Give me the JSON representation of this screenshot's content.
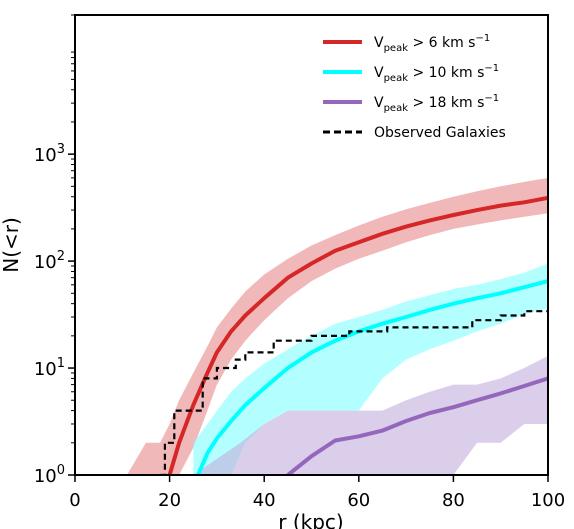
{
  "chart_data": {
    "type": "line",
    "xlabel": "r (kpc)",
    "ylabel": "N(<r)",
    "xlim": [
      0,
      100
    ],
    "ylim": [
      1,
      20000
    ],
    "yscale": "log",
    "grid": false,
    "legend_placement": "top-right",
    "x_ticks": [
      {
        "value": 0,
        "label": "0"
      },
      {
        "value": 20,
        "label": "20"
      },
      {
        "value": 40,
        "label": "40"
      },
      {
        "value": 60,
        "label": "60"
      },
      {
        "value": 80,
        "label": "80"
      },
      {
        "value": 100,
        "label": "100"
      }
    ],
    "y_ticks": [
      {
        "value": 1,
        "base": "10",
        "exp": "0"
      },
      {
        "value": 10,
        "base": "10",
        "exp": "1"
      },
      {
        "value": 100,
        "base": "10",
        "exp": "2"
      },
      {
        "value": 1000,
        "base": "10",
        "exp": "3"
      }
    ],
    "series": [
      {
        "id": "v6",
        "name": "V",
        "name_sub": "peak",
        "name_rest": " > 6 km s",
        "name_sup": "−1",
        "color": "#d62728",
        "band_color": "#e8898a",
        "style": "solid",
        "x": [
          20,
          22,
          25,
          28,
          30,
          33,
          36,
          40,
          45,
          50,
          55,
          60,
          65,
          70,
          75,
          80,
          85,
          90,
          95,
          100
        ],
        "values": [
          1,
          2,
          4.5,
          9,
          14,
          22,
          31,
          45,
          70,
          95,
          125,
          150,
          180,
          210,
          240,
          270,
          300,
          330,
          355,
          390
        ],
        "band_x": [
          11,
          15,
          18,
          20,
          22,
          25,
          28,
          30,
          33,
          36,
          40,
          45,
          50,
          55,
          60,
          65,
          70,
          75,
          80,
          85,
          90,
          95,
          100
        ],
        "band_lower": [
          1,
          1,
          1,
          1,
          1,
          1.8,
          4,
          7,
          12,
          18,
          28,
          45,
          65,
          85,
          105,
          125,
          150,
          175,
          200,
          220,
          240,
          260,
          280
        ],
        "band_upper": [
          1,
          2,
          2,
          3,
          5,
          9,
          16,
          24,
          36,
          52,
          75,
          105,
          140,
          175,
          215,
          260,
          305,
          350,
          400,
          450,
          500,
          550,
          600
        ]
      },
      {
        "id": "v10",
        "name": "V",
        "name_sub": "peak",
        "name_rest": " > 10 km s",
        "name_sup": "−1",
        "color": "#00ffff",
        "band_color": "#80ffff",
        "style": "solid",
        "x": [
          26,
          28,
          30,
          33,
          36,
          40,
          45,
          50,
          55,
          60,
          65,
          70,
          75,
          80,
          85,
          90,
          95,
          100
        ],
        "values": [
          1,
          1.6,
          2.2,
          3.2,
          4.5,
          6.5,
          10,
          14,
          18,
          22,
          26,
          30,
          35,
          40,
          45,
          50,
          57,
          65
        ],
        "band_x": [
          25,
          28,
          30,
          33,
          36,
          40,
          45,
          50,
          55,
          60,
          65,
          70,
          75,
          80,
          85,
          90,
          95,
          100
        ],
        "band_lower": [
          1,
          1,
          1,
          1,
          2,
          3,
          4,
          4,
          4,
          4,
          8,
          12,
          15,
          18,
          22,
          26,
          32,
          36
        ],
        "band_upper": [
          2,
          3,
          4,
          6,
          8,
          11,
          15,
          20,
          26,
          30,
          35,
          42,
          48,
          55,
          60,
          68,
          78,
          95
        ]
      },
      {
        "id": "v18",
        "name": "V",
        "name_sub": "peak",
        "name_rest": " > 18 km s",
        "name_sup": "−1",
        "color": "#9467bd",
        "band_color": "#c3aedd",
        "style": "solid",
        "x": [
          45,
          50,
          55,
          60,
          65,
          70,
          75,
          80,
          85,
          90,
          95,
          100
        ],
        "values": [
          1,
          1.5,
          2.1,
          2.3,
          2.6,
          3.2,
          3.8,
          4.3,
          5,
          5.8,
          6.8,
          8
        ],
        "band_x": [
          25,
          35,
          40,
          45,
          50,
          55,
          60,
          65,
          70,
          75,
          80,
          85,
          90,
          95,
          100
        ],
        "band_lower": [
          1,
          1,
          1,
          1,
          1,
          1,
          1,
          1,
          1,
          1,
          1,
          2,
          2,
          3,
          3
        ],
        "band_upper": [
          1,
          2,
          3,
          4,
          4,
          4,
          4,
          4,
          5,
          6,
          7,
          7,
          8,
          10,
          13
        ]
      },
      {
        "id": "obs",
        "name": "Observed Galaxies",
        "color": "#000000",
        "style": "dashed-step",
        "x": [
          18,
          19,
          21,
          25,
          27,
          30,
          34,
          36,
          42,
          50,
          58,
          66,
          74,
          84,
          90,
          95,
          100
        ],
        "values": [
          1,
          2,
          4,
          4,
          8,
          10,
          12,
          14,
          18,
          20,
          22,
          24,
          24,
          28,
          31,
          34,
          35
        ]
      }
    ]
  }
}
